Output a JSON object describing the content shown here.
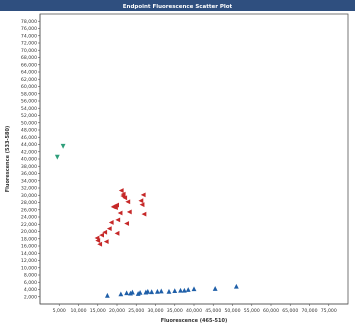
{
  "window": {
    "title_bar_color": "#2f4f7f"
  },
  "chart_data": {
    "type": "scatter",
    "title": "Endpoint Fluorescence Scatter Plot",
    "xlabel": "Fluorescence (465-510)",
    "ylabel": "Fluorescence (533-580)",
    "xlim": [
      0,
      80000
    ],
    "ylim": [
      0,
      80000
    ],
    "x_ticks": [
      5000,
      10000,
      15000,
      20000,
      25000,
      30000,
      35000,
      40000,
      45000,
      50000,
      55000,
      60000,
      65000,
      70000,
      75000
    ],
    "x_tick_labels": [
      "5,000",
      "10,000",
      "15,000",
      "20,000",
      "25,000",
      "30,000",
      "35,000",
      "40,000",
      "45,000",
      "50,000",
      "55,000",
      "60,000",
      "65,000",
      "70,000",
      "75,000"
    ],
    "y_ticks": [
      2000,
      4000,
      6000,
      8000,
      10000,
      12000,
      14000,
      16000,
      18000,
      20000,
      22000,
      24000,
      26000,
      28000,
      30000,
      32000,
      34000,
      36000,
      38000,
      40000,
      42000,
      44000,
      46000,
      48000,
      50000,
      52000,
      54000,
      56000,
      58000,
      60000,
      62000,
      64000,
      66000,
      68000,
      70000,
      72000,
      74000,
      76000,
      78000
    ],
    "y_tick_labels": [
      "2,000",
      "4,000",
      "6,000",
      "8,000",
      "10,000",
      "12,000",
      "14,000",
      "16,000",
      "18,000",
      "20,000",
      "22,000",
      "24,000",
      "26,000",
      "28,000",
      "30,000",
      "32,000",
      "34,000",
      "36,000",
      "38,000",
      "40,000",
      "42,000",
      "44,000",
      "46,000",
      "48,000",
      "50,000",
      "52,000",
      "54,000",
      "56,000",
      "58,000",
      "60,000",
      "62,000",
      "64,000",
      "66,000",
      "68,000",
      "70,000",
      "72,000",
      "74,000",
      "76,000",
      "78,000"
    ],
    "grid": false,
    "series": [
      {
        "marker": "triangle-down",
        "color": "#2e9e7a",
        "points": [
          [
            4500,
            40500
          ],
          [
            6000,
            43500
          ]
        ]
      },
      {
        "marker": "triangle-left",
        "color": "#c62828",
        "points": [
          [
            15000,
            17500
          ],
          [
            15500,
            16500
          ],
          [
            14800,
            18200
          ],
          [
            16000,
            19000
          ],
          [
            16800,
            19800
          ],
          [
            17200,
            17200
          ],
          [
            18000,
            20800
          ],
          [
            18500,
            22500
          ],
          [
            19000,
            26800
          ],
          [
            19300,
            27000
          ],
          [
            19600,
            26600
          ],
          [
            20000,
            19500
          ],
          [
            20200,
            23200
          ],
          [
            20800,
            25100
          ],
          [
            21100,
            31300
          ],
          [
            21600,
            30300
          ],
          [
            22000,
            29300
          ],
          [
            22500,
            22200
          ],
          [
            22800,
            28200
          ],
          [
            23200,
            25400
          ],
          [
            26200,
            28500
          ],
          [
            26500,
            27400
          ],
          [
            27000,
            24800
          ],
          [
            26800,
            30100
          ],
          [
            19900,
            27300
          ],
          [
            21500,
            29800
          ]
        ]
      },
      {
        "marker": "triangle-up",
        "color": "#1f5fa8",
        "points": [
          [
            17500,
            2400
          ],
          [
            21000,
            2800
          ],
          [
            22500,
            3100
          ],
          [
            24000,
            3300
          ],
          [
            26000,
            3200
          ],
          [
            28000,
            3500
          ],
          [
            29000,
            3400
          ],
          [
            30500,
            3500
          ],
          [
            33500,
            3500
          ],
          [
            35000,
            3700
          ],
          [
            36500,
            3800
          ],
          [
            37500,
            3800
          ],
          [
            38500,
            4000
          ],
          [
            40000,
            4200
          ],
          [
            45500,
            4300
          ],
          [
            51000,
            4900
          ],
          [
            27500,
            3300
          ],
          [
            31500,
            3600
          ],
          [
            23500,
            3000
          ],
          [
            25500,
            2900
          ]
        ]
      }
    ]
  }
}
